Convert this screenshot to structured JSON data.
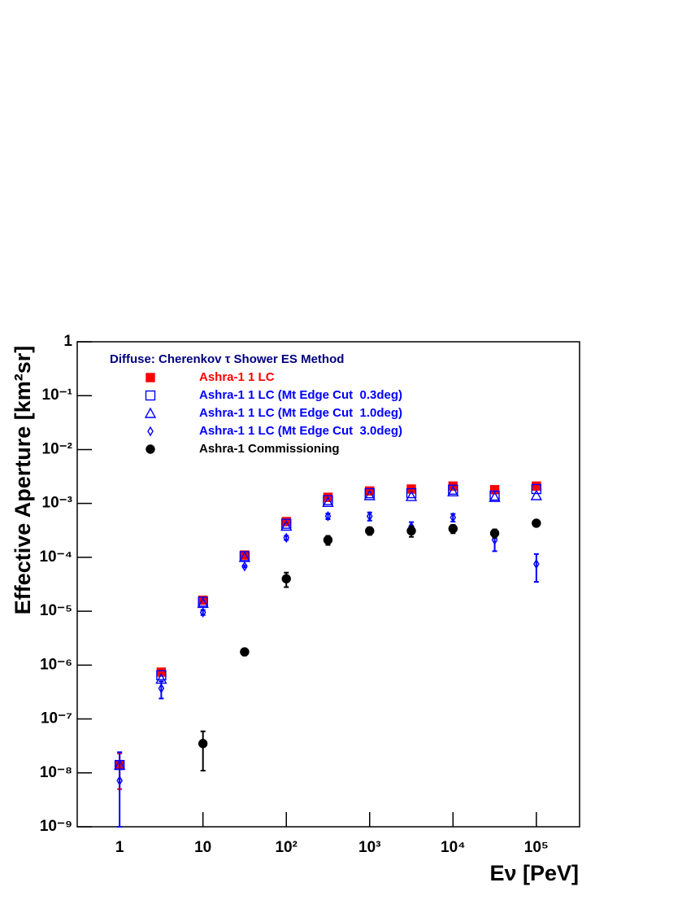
{
  "chart_data": {
    "type": "scatter",
    "legend_title": "Diffuse: Cherenkov τ Shower ES Method",
    "legend_title_color": "#000080",
    "x_label": "Eν [PeV]",
    "y_label": "Effective Aperture [km²sr]",
    "xscale": "log",
    "yscale": "log",
    "xlim": [
      0.31,
      330000
    ],
    "ylim": [
      1e-09,
      1
    ],
    "xticks": [
      1,
      10,
      {
        "value": 100,
        "label": "10²"
      },
      {
        "value": 1000,
        "label": "10³"
      },
      {
        "value": 10000,
        "label": "10⁴"
      },
      {
        "value": 100000,
        "label": "10⁵"
      }
    ],
    "yticks": [
      {
        "value": 1e-09,
        "label": "10⁻⁹"
      },
      {
        "value": 1e-08,
        "label": "10⁻⁸"
      },
      {
        "value": 1e-07,
        "label": "10⁻⁷"
      },
      {
        "value": 1e-06,
        "label": "10⁻⁶"
      },
      {
        "value": 1e-05,
        "label": "10⁻⁵"
      },
      {
        "value": 0.0001,
        "label": "10⁻⁴"
      },
      {
        "value": 0.001,
        "label": "10⁻³"
      },
      {
        "value": 0.01,
        "label": "10⁻²"
      },
      {
        "value": 0.1,
        "label": "10⁻¹"
      },
      1
    ],
    "x": [
      1,
      3.16,
      10,
      31.6,
      100,
      316,
      1000,
      3162,
      10000,
      31623,
      100000
    ],
    "series": [
      {
        "name": "Ashra-1 1 LC",
        "color": "#ff0000",
        "marker": "filled-square",
        "values": [
          1.4e-08,
          7.4e-07,
          1.6e-05,
          0.00011,
          0.00046,
          0.0013,
          0.0017,
          0.00185,
          0.0021,
          0.0018,
          0.0021
        ],
        "errors": [
          9e-09,
          1e-07,
          1e-06,
          5e-06,
          2e-05,
          8e-05,
          0.0001,
          0.0001,
          0.00015,
          0.0001,
          0.00015
        ]
      },
      {
        "name": "Ashra-1 1 LC (Mt Edge Cut  0.3deg)",
        "color": "#0000ff",
        "marker": "open-square",
        "values": [
          1.4e-08,
          6.5e-07,
          1.5e-05,
          0.000105,
          0.00042,
          0.00115,
          0.00155,
          0.00155,
          0.0018,
          0.0014,
          0.00185
        ]
      },
      {
        "name": "Ashra-1 1 LC (Mt Edge Cut  1.0deg)",
        "color": "#0000ff",
        "marker": "open-triangle",
        "values": [
          1.4e-08,
          5.5e-07,
          1.4e-05,
          0.0001,
          0.00038,
          0.00105,
          0.0014,
          0.00135,
          0.00165,
          0.0013,
          0.0014
        ]
      },
      {
        "name": "Ashra-1 1 LC (Mt Edge Cut  3.0deg)",
        "color": "#0000ff",
        "marker": "open-diamond",
        "values": [
          7.2e-09,
          3.7e-07,
          9.5e-06,
          6.8e-05,
          0.00023,
          0.00058,
          0.00058,
          0.00037,
          0.00055,
          0.00021,
          7.5e-05
        ],
        "errors": [
          1.7e-08,
          1.3e-07,
          1e-06,
          3e-06,
          2e-05,
          7e-05,
          0.0001,
          8e-05,
          9e-05,
          8e-05,
          4e-05
        ]
      },
      {
        "name": "Ashra-1 Commissioning",
        "color": "#000000",
        "marker": "filled-circle",
        "values": [
          null,
          null,
          3.5e-08,
          1.76e-06,
          4e-05,
          0.00021,
          0.00031,
          0.00031,
          0.00034,
          0.00028,
          0.00043
        ],
        "errors": [
          null,
          null,
          2.4e-08,
          2.5e-07,
          1.2e-05,
          4e-05,
          5e-05,
          7e-05,
          6e-05,
          5e-05,
          5e-05
        ]
      }
    ]
  }
}
